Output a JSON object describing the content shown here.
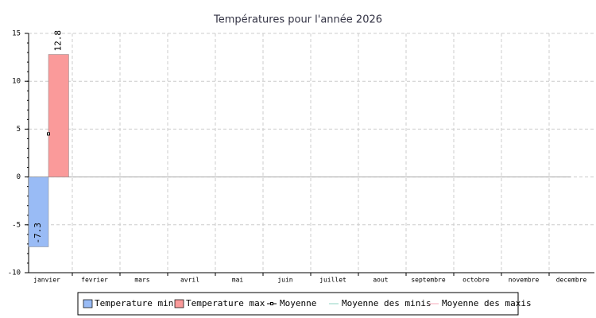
{
  "chart_data": {
    "type": "bar",
    "title": "Températures pour l'année 2026",
    "categories": [
      "janvier",
      "fevrier",
      "mars",
      "avril",
      "mai",
      "juin",
      "juillet",
      "aout",
      "septembre",
      "octobre",
      "novembre",
      "decembre"
    ],
    "series": [
      {
        "name": "Temperature min",
        "color": "#99bbf5",
        "values": [
          -7.3,
          null,
          null,
          null,
          null,
          null,
          null,
          null,
          null,
          null,
          null,
          null
        ]
      },
      {
        "name": "Temperature max",
        "color": "#fa9a9a",
        "values": [
          12.8,
          null,
          null,
          null,
          null,
          null,
          null,
          null,
          null,
          null,
          null,
          null
        ]
      },
      {
        "name": "Moyenne",
        "color": "#000000",
        "values": [
          4.5,
          null,
          null,
          null,
          null,
          null,
          null,
          null,
          null,
          null,
          null,
          null
        ]
      },
      {
        "name": "Moyenne des minis",
        "color": "#8fd3c3",
        "values": [
          null,
          null,
          null,
          null,
          null,
          null,
          null,
          null,
          null,
          null,
          null,
          null
        ]
      },
      {
        "name": "Moyenne des maxis",
        "color": "#f7a8b8",
        "values": [
          null,
          null,
          null,
          null,
          null,
          null,
          null,
          null,
          null,
          null,
          null,
          null
        ]
      }
    ],
    "ylim": [
      -10,
      15
    ],
    "yticks": [
      -10,
      -5,
      0,
      5,
      10,
      15
    ],
    "grid": true
  }
}
